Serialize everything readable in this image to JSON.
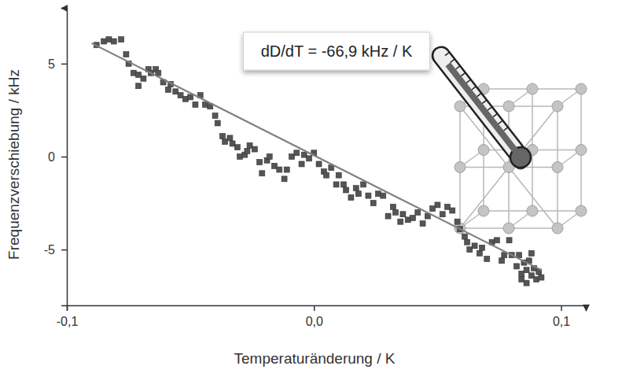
{
  "chart_data": {
    "type": "scatter",
    "x_label": "Temperaturänderung / K",
    "y_label": "Frequenzverschiebung / kHz",
    "annotation": "dD/dT = -66,9 kHz / K",
    "xlim": [
      -0.1,
      0.11
    ],
    "ylim": [
      -8,
      8
    ],
    "xticks": [
      {
        "value": -0.1,
        "label": "-0,1"
      },
      {
        "value": 0,
        "label": "0,0"
      },
      {
        "value": 0.1,
        "label": "0,1"
      }
    ],
    "yticks": [
      -5,
      0,
      5
    ],
    "grid": false,
    "series": [
      {
        "type": "scatter",
        "marker": "square",
        "color": "#555555",
        "x": [
          -0.088,
          -0.085,
          -0.083,
          -0.081,
          -0.078,
          -0.076,
          -0.075,
          -0.073,
          -0.071,
          -0.071,
          -0.069,
          -0.067,
          -0.066,
          -0.064,
          -0.063,
          -0.061,
          -0.059,
          -0.058,
          -0.056,
          -0.054,
          -0.052,
          -0.05,
          -0.048,
          -0.046,
          -0.044,
          -0.042,
          -0.04,
          -0.039,
          -0.037,
          -0.036,
          -0.034,
          -0.033,
          -0.031,
          -0.03,
          -0.028,
          -0.027,
          -0.026,
          -0.024,
          -0.022,
          -0.021,
          -0.019,
          -0.018,
          -0.016,
          -0.014,
          -0.012,
          -0.011,
          -0.009,
          -0.007,
          -0.005,
          -0.004,
          -0.002,
          0.0,
          0.002,
          0.004,
          0.005,
          0.007,
          0.009,
          0.01,
          0.012,
          0.013,
          0.015,
          0.017,
          0.018,
          0.02,
          0.022,
          0.024,
          0.026,
          0.028,
          0.03,
          0.032,
          0.033,
          0.035,
          0.036,
          0.038,
          0.04,
          0.042,
          0.044,
          0.046,
          0.048,
          0.05,
          0.052,
          0.054,
          0.056,
          0.058,
          0.059,
          0.061,
          0.062,
          0.063,
          0.065,
          0.067,
          0.068,
          0.07,
          0.072,
          0.074,
          0.076,
          0.077,
          0.079,
          0.08,
          0.082,
          0.083,
          0.084,
          0.085,
          0.086,
          0.087,
          0.088,
          0.089,
          0.09,
          0.091,
          0.092,
          0.084,
          0.086,
          0.088
        ],
        "values": [
          6.0,
          6.2,
          6.3,
          6.2,
          6.3,
          5.5,
          5.0,
          4.5,
          4.4,
          3.8,
          4.2,
          4.7,
          4.5,
          4.7,
          4.5,
          4.0,
          3.6,
          3.9,
          3.5,
          3.3,
          3.1,
          3.2,
          2.8,
          3.3,
          2.8,
          2.7,
          2.2,
          1.8,
          1.1,
          0.8,
          1.0,
          0.7,
          0.5,
          0.0,
          0.1,
          0.3,
          0.6,
          0.4,
          -0.3,
          -0.9,
          -0.2,
          0.0,
          -0.5,
          -0.7,
          -1.2,
          -0.7,
          0.0,
          0.2,
          -0.4,
          0.1,
          -0.1,
          0.2,
          -0.4,
          -0.8,
          -1.0,
          -0.6,
          -1.5,
          -1.0,
          -1.5,
          -1.8,
          -2.2,
          -1.7,
          -2.0,
          -1.5,
          -2.1,
          -2.5,
          -2.0,
          -2.1,
          -3.2,
          -2.7,
          -3.0,
          -3.5,
          -3.1,
          -3.4,
          -3.3,
          -3.0,
          -3.6,
          -3.2,
          -2.8,
          -2.6,
          -3.1,
          -2.7,
          -2.9,
          -3.5,
          -3.9,
          -4.3,
          -4.6,
          -5.0,
          -4.8,
          -5.2,
          -4.9,
          -5.5,
          -4.6,
          -4.5,
          -5.6,
          -5.3,
          -4.5,
          -5.3,
          -5.9,
          -5.3,
          -6.3,
          -5.7,
          -6.1,
          -5.6,
          -6.4,
          -6.0,
          -6.6,
          -6.2,
          -6.5,
          -6.6,
          -6.8,
          -5.2
        ]
      },
      {
        "type": "line",
        "line_style": "solid",
        "color": "#808080",
        "x": [
          -0.09,
          0.092
        ],
        "values": [
          6.1,
          -6.1
        ]
      }
    ]
  }
}
